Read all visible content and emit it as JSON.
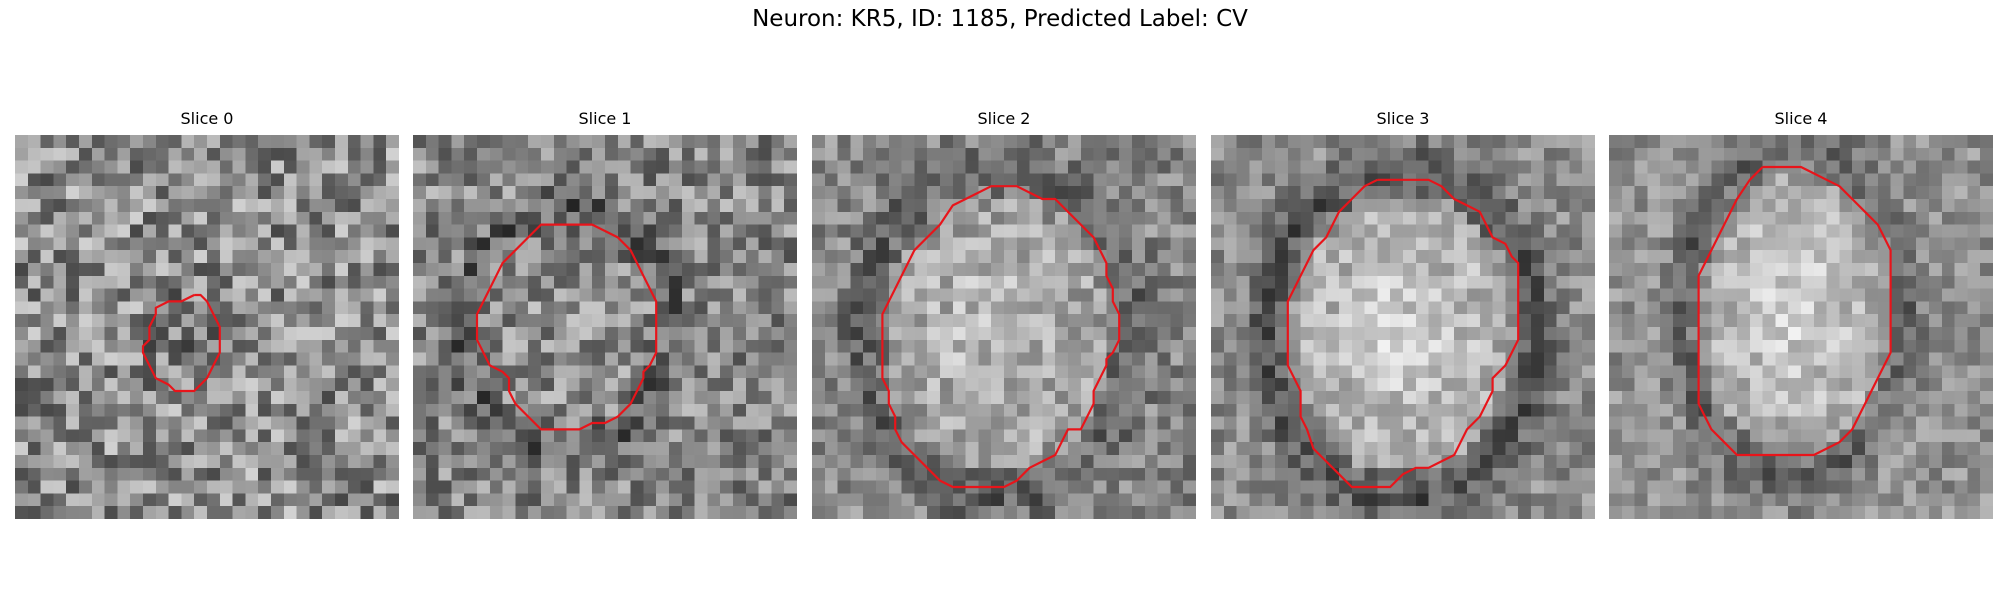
{
  "figure": {
    "title": "Neuron: KR5, ID: 1185, Predicted Label: CV"
  },
  "panels": [
    {
      "label": "Slice 0",
      "contour": [
        [
          14,
          12.5
        ],
        [
          14.5,
          12.5
        ],
        [
          15,
          13
        ],
        [
          15.5,
          14
        ],
        [
          16,
          15
        ],
        [
          16,
          16
        ],
        [
          16,
          17
        ],
        [
          15.5,
          18
        ],
        [
          15,
          19
        ],
        [
          14,
          20
        ],
        [
          13.5,
          20
        ],
        [
          12.5,
          20
        ],
        [
          12,
          19.5
        ],
        [
          11,
          19
        ],
        [
          10.5,
          18
        ],
        [
          10,
          17
        ],
        [
          10,
          16.5
        ],
        [
          10.5,
          16
        ],
        [
          10.5,
          15
        ],
        [
          11,
          14
        ],
        [
          11,
          13.5
        ],
        [
          12,
          13
        ],
        [
          13,
          13
        ],
        [
          14,
          12.5
        ]
      ]
    },
    {
      "label": "Slice 1",
      "contour": [
        [
          11,
          7
        ],
        [
          12,
          7
        ],
        [
          13,
          7
        ],
        [
          14,
          7
        ],
        [
          15,
          7.5
        ],
        [
          16,
          8
        ],
        [
          17,
          9
        ],
        [
          17.5,
          10
        ],
        [
          18,
          11
        ],
        [
          18.5,
          12
        ],
        [
          19,
          13
        ],
        [
          19,
          14
        ],
        [
          19,
          15
        ],
        [
          19,
          16
        ],
        [
          19,
          17
        ],
        [
          18.5,
          18
        ],
        [
          18,
          18.5
        ],
        [
          18,
          19
        ],
        [
          17.5,
          20
        ],
        [
          17,
          21
        ],
        [
          16,
          22
        ],
        [
          15,
          22.5
        ],
        [
          14,
          22.5
        ],
        [
          13,
          23
        ],
        [
          12,
          23
        ],
        [
          11,
          23
        ],
        [
          10,
          23
        ],
        [
          9,
          22
        ],
        [
          8,
          21
        ],
        [
          7.5,
          20
        ],
        [
          7.5,
          19
        ],
        [
          7,
          18.5
        ],
        [
          6,
          18
        ],
        [
          5.5,
          17
        ],
        [
          5,
          16
        ],
        [
          5,
          15
        ],
        [
          5,
          14
        ],
        [
          5.5,
          13
        ],
        [
          6,
          12
        ],
        [
          6.5,
          11
        ],
        [
          7,
          10
        ],
        [
          8,
          9
        ],
        [
          9,
          8
        ],
        [
          10,
          7
        ],
        [
          11,
          7
        ]
      ]
    },
    {
      "label": "Slice 2",
      "contour": [
        [
          13,
          4.5
        ],
        [
          14,
          4
        ],
        [
          15,
          4
        ],
        [
          16,
          4
        ],
        [
          17,
          4.5
        ],
        [
          18,
          5
        ],
        [
          19,
          5
        ],
        [
          20,
          6
        ],
        [
          21,
          7
        ],
        [
          22,
          8
        ],
        [
          22.5,
          9
        ],
        [
          23,
          10
        ],
        [
          23,
          11
        ],
        [
          23.5,
          12
        ],
        [
          23.5,
          13
        ],
        [
          24,
          14
        ],
        [
          24,
          15
        ],
        [
          24,
          16
        ],
        [
          23.5,
          17
        ],
        [
          23,
          17.5
        ],
        [
          23,
          18
        ],
        [
          22.5,
          19
        ],
        [
          22,
          20
        ],
        [
          22,
          21
        ],
        [
          21.5,
          22
        ],
        [
          21,
          23
        ],
        [
          20,
          23
        ],
        [
          19.5,
          24
        ],
        [
          19,
          25
        ],
        [
          18,
          25.5
        ],
        [
          17,
          26
        ],
        [
          16,
          27
        ],
        [
          15,
          27.5
        ],
        [
          14,
          27.5
        ],
        [
          13,
          27.5
        ],
        [
          12,
          27.5
        ],
        [
          11,
          27.5
        ],
        [
          10,
          27
        ],
        [
          9,
          26
        ],
        [
          8,
          25
        ],
        [
          7,
          24
        ],
        [
          6.5,
          23
        ],
        [
          6.5,
          22
        ],
        [
          6,
          21
        ],
        [
          6,
          20
        ],
        [
          5.5,
          19
        ],
        [
          5.5,
          18
        ],
        [
          5.5,
          17
        ],
        [
          5.5,
          16
        ],
        [
          5.5,
          15
        ],
        [
          5.5,
          14
        ],
        [
          6,
          13
        ],
        [
          6.5,
          12
        ],
        [
          7,
          11
        ],
        [
          7.5,
          10
        ],
        [
          8,
          9
        ],
        [
          9,
          8
        ],
        [
          10,
          7
        ],
        [
          11,
          5.5
        ],
        [
          12,
          5
        ],
        [
          13,
          4.5
        ]
      ]
    },
    {
      "label": "Slice 3",
      "contour": [
        [
          13,
          3.5
        ],
        [
          14,
          3.5
        ],
        [
          15,
          3.5
        ],
        [
          16,
          3.5
        ],
        [
          17,
          3.5
        ],
        [
          18,
          4
        ],
        [
          19,
          5
        ],
        [
          20,
          5.5
        ],
        [
          21,
          6
        ],
        [
          21.5,
          7
        ],
        [
          22,
          8
        ],
        [
          23,
          8.5
        ],
        [
          23.5,
          9.5
        ],
        [
          24,
          10
        ],
        [
          24,
          11
        ],
        [
          24,
          12
        ],
        [
          24,
          13
        ],
        [
          24,
          14
        ],
        [
          24,
          15
        ],
        [
          24,
          16
        ],
        [
          23.5,
          17
        ],
        [
          23,
          18
        ],
        [
          22,
          19
        ],
        [
          22,
          20
        ],
        [
          21.5,
          21
        ],
        [
          21,
          22
        ],
        [
          20,
          23
        ],
        [
          19.5,
          24
        ],
        [
          19,
          25
        ],
        [
          18,
          25.5
        ],
        [
          17,
          26
        ],
        [
          16,
          26
        ],
        [
          15,
          26.5
        ],
        [
          14,
          27.5
        ],
        [
          13,
          27.5
        ],
        [
          12,
          27.5
        ],
        [
          11,
          27.5
        ],
        [
          10,
          26.5
        ],
        [
          9,
          25.5
        ],
        [
          8,
          24.5
        ],
        [
          7.5,
          23
        ],
        [
          7,
          22
        ],
        [
          7,
          21
        ],
        [
          7,
          20
        ],
        [
          6.5,
          19
        ],
        [
          6,
          18
        ],
        [
          6,
          17
        ],
        [
          6,
          16
        ],
        [
          6,
          15
        ],
        [
          6,
          14
        ],
        [
          6,
          13
        ],
        [
          6.5,
          12
        ],
        [
          7,
          11
        ],
        [
          7.5,
          10
        ],
        [
          8,
          9
        ],
        [
          9,
          8
        ],
        [
          10,
          6
        ],
        [
          11,
          5
        ],
        [
          12,
          4
        ],
        [
          13,
          3.5
        ]
      ]
    },
    {
      "label": "Slice 4",
      "contour": [
        [
          12,
          2.5
        ],
        [
          13,
          2.5
        ],
        [
          14,
          2.5
        ],
        [
          15,
          2.5
        ],
        [
          16,
          3
        ],
        [
          17,
          3.5
        ],
        [
          18,
          4
        ],
        [
          19,
          5
        ],
        [
          20,
          6
        ],
        [
          21,
          7
        ],
        [
          21.5,
          8
        ],
        [
          22,
          9
        ],
        [
          22,
          10
        ],
        [
          22,
          11
        ],
        [
          22,
          12
        ],
        [
          22,
          13
        ],
        [
          22,
          14
        ],
        [
          22,
          15
        ],
        [
          22,
          16
        ],
        [
          22,
          17
        ],
        [
          21.5,
          18
        ],
        [
          21,
          19
        ],
        [
          20.5,
          20
        ],
        [
          20,
          21
        ],
        [
          19.5,
          22
        ],
        [
          19,
          23
        ],
        [
          18,
          24
        ],
        [
          17,
          24.5
        ],
        [
          16,
          25
        ],
        [
          15,
          25
        ],
        [
          14,
          25
        ],
        [
          13,
          25
        ],
        [
          12,
          25
        ],
        [
          11,
          25
        ],
        [
          10,
          25
        ],
        [
          9,
          24
        ],
        [
          8,
          23
        ],
        [
          7.5,
          22
        ],
        [
          7,
          21
        ],
        [
          7,
          20
        ],
        [
          7,
          19
        ],
        [
          7,
          18
        ],
        [
          7,
          17
        ],
        [
          7,
          16
        ],
        [
          7,
          15
        ],
        [
          7,
          14
        ],
        [
          7,
          13
        ],
        [
          7,
          12
        ],
        [
          7,
          11
        ],
        [
          7.5,
          10
        ],
        [
          8,
          9
        ],
        [
          8.5,
          8
        ],
        [
          9,
          7
        ],
        [
          9.5,
          6
        ],
        [
          10,
          5
        ],
        [
          11,
          3.5
        ],
        [
          12,
          2.5
        ]
      ]
    }
  ]
}
